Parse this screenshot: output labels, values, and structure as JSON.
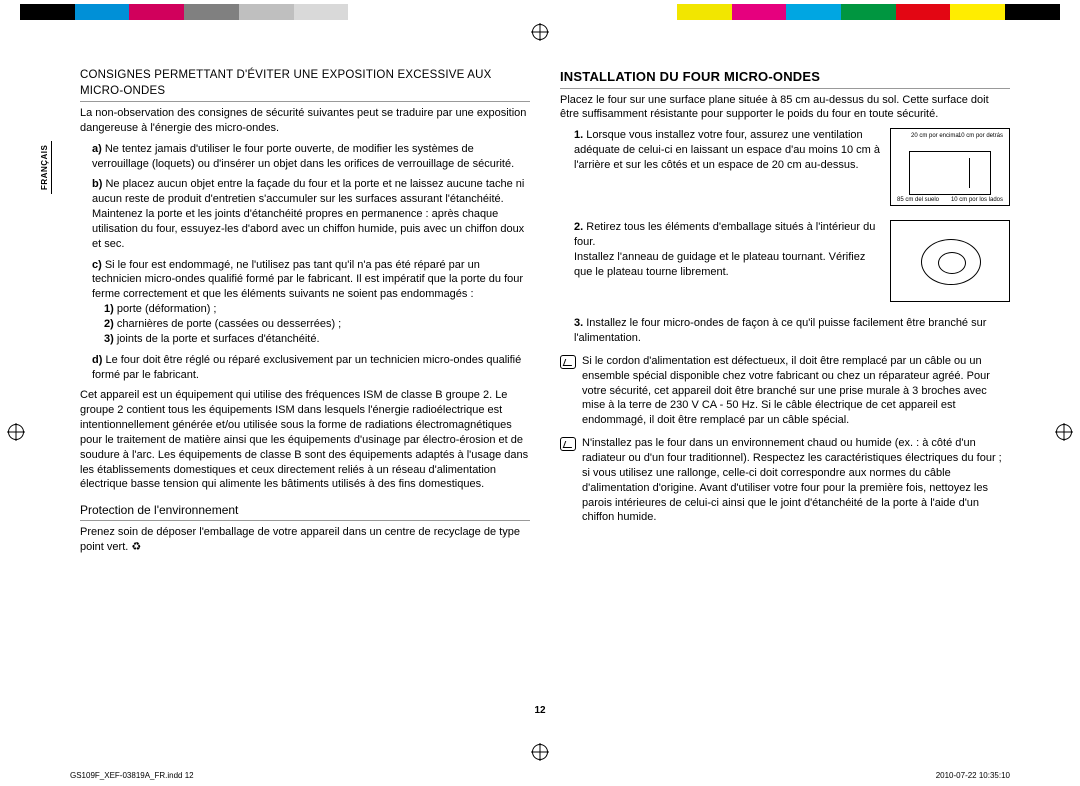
{
  "colorbar_colors": [
    "#000000",
    "#0090d7",
    "#d1005c",
    "#808080",
    "#bfbfbf",
    "#d9d9d9",
    "#ffffff",
    "#ffffff",
    "#ffffff",
    "#ffffff",
    "#ffffff",
    "#ffffff",
    "#f2e600",
    "#e6007e",
    "#00a6e2",
    "#009640",
    "#e30613",
    "#ffed00",
    "#000000"
  ],
  "side_tab": "FRANÇAIS",
  "page_num": "12",
  "footer_left": "GS109F_XEF-03819A_FR.indd   12",
  "footer_right": "2010-07-22   10:35:10",
  "left": {
    "heading": "CONSIGNES PERMETTANT D'ÉVITER UNE EXPOSITION EXCESSIVE AUX MICRO-ONDES",
    "intro": "La non-observation des consignes de sécurité suivantes peut se traduire par une exposition dangereuse à l'énergie des micro-ondes.",
    "items": [
      {
        "lbl": "a)",
        "txt": "Ne tentez jamais d'utiliser le four porte ouverte, de modifier les systèmes de verrouillage (loquets) ou d'insérer un objet dans les orifices de verrouillage de sécurité."
      },
      {
        "lbl": "b)",
        "txt": "Ne placez aucun objet entre la façade du four et la porte et ne laissez aucune tache ni aucun reste de produit d'entretien s'accumuler sur les surfaces assurant l'étanchéité. Maintenez la porte et les joints d'étanchéité propres en permanence : après chaque utilisation du four, essuyez-les d'abord avec un chiffon humide, puis avec un chiffon doux et sec."
      },
      {
        "lbl": "c)",
        "txt": "Si le four est endommagé, ne l'utilisez pas tant qu'il n'a pas été réparé par un technicien micro-ondes qualifié formé par le fabricant. Il est impératif que la porte du four ferme correctement et que les éléments suivants ne soient pas endommagés :"
      }
    ],
    "sub": [
      {
        "slbl": "1)",
        "stxt": " porte (déformation) ;"
      },
      {
        "slbl": "2)",
        "stxt": " charnières de porte (cassées ou desserrées) ;"
      },
      {
        "slbl": "3)",
        "stxt": " joints de la porte et surfaces d'étanchéité."
      }
    ],
    "item_d": {
      "lbl": "d)",
      "txt": "Le four doit être réglé ou réparé exclusivement par un technicien micro-ondes qualifié formé par le fabricant."
    },
    "para2": "Cet appareil est un équipement qui utilise des fréquences ISM de classe B groupe 2. Le groupe 2 contient tous les équipements ISM dans lesquels l'énergie radioélectrique est intentionnellement générée et/ou utilisée sous la forme de radiations électromagnétiques pour le traitement de matière ainsi que les équipements d'usinage par électro-érosion et de soudure à l'arc. Les équipements de classe B sont des équipements adaptés à l'usage dans les établissements domestiques et ceux directement reliés à un réseau d'alimentation électrique basse tension qui alimente les bâtiments utilisés à des fins domestiques.",
    "env_heading": "Protection de l'environnement",
    "env_text": "Prenez soin de déposer l'emballage de votre appareil dans un centre de recyclage de type point vert. "
  },
  "right": {
    "heading": "INSTALLATION DU FOUR MICRO-ONDES",
    "intro": "Placez le four sur une surface plane située à 85 cm au-dessus du sol. Cette surface doit être suffisamment résistante pour supporter le poids du four en toute sécurité.",
    "ol": [
      {
        "lbl": "1.",
        "txt": "Lorsque vous installez votre four, assurez une ventilation adéquate de celui-ci en laissant un espace d'au moins 10 cm à l'arrière et sur les côtés et un espace de 20 cm au-dessus."
      },
      {
        "lbl": "2.",
        "txt": "Retirez tous les éléments d'emballage situés à l'intérieur du four.",
        "extra": "Installez l'anneau de guidage et le plateau tournant. Vérifiez que le plateau tourne librement."
      },
      {
        "lbl": "3.",
        "txt": "Installez le four micro-ondes de façon à ce qu'il puisse facilement être branché sur l'alimentation."
      }
    ],
    "diag": {
      "top_l": "20 cm por encima",
      "top_r": "10 cm por detrás",
      "bot_l": "85 cm del suelo",
      "bot_r": "10 cm por los lados"
    },
    "note1": "Si le cordon d'alimentation est défectueux, il doit être remplacé par un câble ou un ensemble spécial disponible chez votre fabricant ou chez un réparateur agréé.\nPour votre sécurité, cet appareil doit être branché sur une prise murale à 3 broches avec mise à la terre de 230 V CA - 50 Hz. Si le câble électrique de cet appareil est endommagé, il doit être remplacé par un câble spécial.",
    "note2": "N'installez pas le four dans un environnement chaud ou humide (ex. : à côté d'un radiateur ou d'un four traditionnel). Respectez les caractéristiques électriques du four ; si vous utilisez une rallonge, celle-ci doit correspondre aux normes du câble d'alimentation d'origine. Avant d'utiliser votre four pour la première fois, nettoyez les parois intérieures de celui-ci ainsi que le joint d'étanchéité de la porte à l'aide d'un chiffon humide."
  }
}
